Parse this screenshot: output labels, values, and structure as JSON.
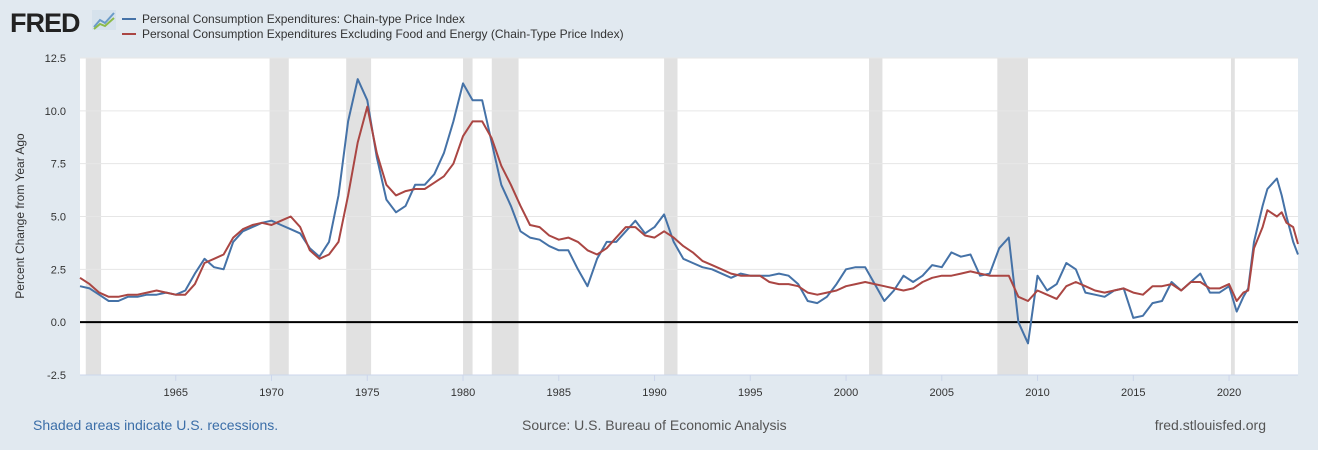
{
  "header": {
    "logo": "FRED",
    "logo_icon": "line-chart-icon"
  },
  "legend": [
    {
      "label": "Personal Consumption Expenditures: Chain-type Price Index",
      "color": "#4572a7"
    },
    {
      "label": "Personal Consumption Expenditures Excluding Food and Energy (Chain-Type Price Index)",
      "color": "#aa4643"
    }
  ],
  "footer": {
    "left": "Shaded areas indicate U.S. recessions.",
    "source": "Source: U.S. Bureau of Economic Analysis",
    "site": "fred.stlouisfed.org"
  },
  "chart_data": {
    "type": "line",
    "ylabel": "Percent Change from Year Ago",
    "xlim": [
      1960,
      2023.6
    ],
    "ylim": [
      -2.5,
      12.5
    ],
    "yticks": [
      "-2.5",
      "0.0",
      "2.5",
      "5.0",
      "7.5",
      "10.0",
      "12.5"
    ],
    "xticks": [
      "1965",
      "1970",
      "1975",
      "1980",
      "1985",
      "1990",
      "1995",
      "2000",
      "2005",
      "2010",
      "2015",
      "2020"
    ],
    "grid": true,
    "legend_placement": "top-left",
    "recessions": [
      [
        1960.3,
        1961.1
      ],
      [
        1969.9,
        1970.9
      ],
      [
        1973.9,
        1975.2
      ],
      [
        1980.0,
        1980.5
      ],
      [
        1981.5,
        1982.9
      ],
      [
        1990.5,
        1991.2
      ],
      [
        2001.2,
        2001.9
      ],
      [
        2007.9,
        2009.5
      ],
      [
        2020.1,
        2020.3
      ]
    ],
    "series": [
      {
        "name": "Personal Consumption Expenditures: Chain-type Price Index",
        "color": "#4572a7",
        "points": [
          [
            1960,
            1.7
          ],
          [
            1960.5,
            1.6
          ],
          [
            1961,
            1.3
          ],
          [
            1961.5,
            1.0
          ],
          [
            1962,
            1.0
          ],
          [
            1962.5,
            1.2
          ],
          [
            1963,
            1.2
          ],
          [
            1963.5,
            1.3
          ],
          [
            1964,
            1.3
          ],
          [
            1964.5,
            1.4
          ],
          [
            1965,
            1.3
          ],
          [
            1965.5,
            1.5
          ],
          [
            1966,
            2.3
          ],
          [
            1966.5,
            3.0
          ],
          [
            1967,
            2.6
          ],
          [
            1967.5,
            2.5
          ],
          [
            1968,
            3.8
          ],
          [
            1968.5,
            4.3
          ],
          [
            1969,
            4.5
          ],
          [
            1969.5,
            4.7
          ],
          [
            1970,
            4.8
          ],
          [
            1970.5,
            4.6
          ],
          [
            1971,
            4.4
          ],
          [
            1971.5,
            4.2
          ],
          [
            1972,
            3.5
          ],
          [
            1972.5,
            3.1
          ],
          [
            1973,
            3.8
          ],
          [
            1973.5,
            6.0
          ],
          [
            1974,
            9.5
          ],
          [
            1974.5,
            11.5
          ],
          [
            1975,
            10.5
          ],
          [
            1975.5,
            7.8
          ],
          [
            1976,
            5.8
          ],
          [
            1976.5,
            5.2
          ],
          [
            1977,
            5.5
          ],
          [
            1977.5,
            6.5
          ],
          [
            1978,
            6.5
          ],
          [
            1978.5,
            7.0
          ],
          [
            1979,
            8.0
          ],
          [
            1979.5,
            9.5
          ],
          [
            1980,
            11.3
          ],
          [
            1980.5,
            10.5
          ],
          [
            1981,
            10.5
          ],
          [
            1981.5,
            8.5
          ],
          [
            1982,
            6.5
          ],
          [
            1982.5,
            5.5
          ],
          [
            1983,
            4.3
          ],
          [
            1983.5,
            4.0
          ],
          [
            1984,
            3.9
          ],
          [
            1984.5,
            3.6
          ],
          [
            1985,
            3.4
          ],
          [
            1985.5,
            3.4
          ],
          [
            1986,
            2.5
          ],
          [
            1986.5,
            1.7
          ],
          [
            1987,
            3.0
          ],
          [
            1987.5,
            3.8
          ],
          [
            1988,
            3.8
          ],
          [
            1988.5,
            4.3
          ],
          [
            1989,
            4.8
          ],
          [
            1989.5,
            4.2
          ],
          [
            1990,
            4.5
          ],
          [
            1990.5,
            5.1
          ],
          [
            1991,
            3.8
          ],
          [
            1991.5,
            3.0
          ],
          [
            1992,
            2.8
          ],
          [
            1992.5,
            2.6
          ],
          [
            1993,
            2.5
          ],
          [
            1993.5,
            2.3
          ],
          [
            1994,
            2.1
          ],
          [
            1994.5,
            2.3
          ],
          [
            1995,
            2.2
          ],
          [
            1995.5,
            2.2
          ],
          [
            1996,
            2.2
          ],
          [
            1996.5,
            2.3
          ],
          [
            1997,
            2.2
          ],
          [
            1997.5,
            1.8
          ],
          [
            1998,
            1.0
          ],
          [
            1998.5,
            0.9
          ],
          [
            1999,
            1.2
          ],
          [
            1999.5,
            1.8
          ],
          [
            2000,
            2.5
          ],
          [
            2000.5,
            2.6
          ],
          [
            2001,
            2.6
          ],
          [
            2001.5,
            1.8
          ],
          [
            2002,
            1.0
          ],
          [
            2002.5,
            1.5
          ],
          [
            2003,
            2.2
          ],
          [
            2003.5,
            1.9
          ],
          [
            2004,
            2.2
          ],
          [
            2004.5,
            2.7
          ],
          [
            2005,
            2.6
          ],
          [
            2005.5,
            3.3
          ],
          [
            2006,
            3.1
          ],
          [
            2006.5,
            3.2
          ],
          [
            2007,
            2.2
          ],
          [
            2007.5,
            2.3
          ],
          [
            2008,
            3.5
          ],
          [
            2008.5,
            4.0
          ],
          [
            2009,
            0.0
          ],
          [
            2009.5,
            -1.0
          ],
          [
            2010,
            2.2
          ],
          [
            2010.5,
            1.5
          ],
          [
            2011,
            1.8
          ],
          [
            2011.5,
            2.8
          ],
          [
            2012,
            2.5
          ],
          [
            2012.5,
            1.4
          ],
          [
            2013,
            1.3
          ],
          [
            2013.5,
            1.2
          ],
          [
            2014,
            1.5
          ],
          [
            2014.5,
            1.6
          ],
          [
            2015,
            0.2
          ],
          [
            2015.5,
            0.3
          ],
          [
            2016,
            0.9
          ],
          [
            2016.5,
            1.0
          ],
          [
            2017,
            1.9
          ],
          [
            2017.5,
            1.5
          ],
          [
            2018,
            1.9
          ],
          [
            2018.5,
            2.3
          ],
          [
            2019,
            1.4
          ],
          [
            2019.5,
            1.4
          ],
          [
            2020,
            1.7
          ],
          [
            2020.4,
            0.5
          ],
          [
            2020.75,
            1.2
          ],
          [
            2021,
            1.6
          ],
          [
            2021.3,
            3.8
          ],
          [
            2021.75,
            5.5
          ],
          [
            2022,
            6.3
          ],
          [
            2022.5,
            6.8
          ],
          [
            2022.75,
            6.0
          ],
          [
            2023,
            5.0
          ],
          [
            2023.35,
            3.8
          ],
          [
            2023.6,
            3.2
          ]
        ]
      },
      {
        "name": "Personal Consumption Expenditures Excluding Food and Energy (Chain-Type Price Index)",
        "color": "#aa4643",
        "points": [
          [
            1960,
            2.1
          ],
          [
            1960.5,
            1.8
          ],
          [
            1961,
            1.4
          ],
          [
            1961.5,
            1.2
          ],
          [
            1962,
            1.2
          ],
          [
            1962.5,
            1.3
          ],
          [
            1963,
            1.3
          ],
          [
            1963.5,
            1.4
          ],
          [
            1964,
            1.5
          ],
          [
            1964.5,
            1.4
          ],
          [
            1965,
            1.3
          ],
          [
            1965.5,
            1.3
          ],
          [
            1966,
            1.8
          ],
          [
            1966.5,
            2.8
          ],
          [
            1967,
            3.0
          ],
          [
            1967.5,
            3.2
          ],
          [
            1968,
            4.0
          ],
          [
            1968.5,
            4.4
          ],
          [
            1969,
            4.6
          ],
          [
            1969.5,
            4.7
          ],
          [
            1970,
            4.6
          ],
          [
            1970.5,
            4.8
          ],
          [
            1971,
            5.0
          ],
          [
            1971.5,
            4.5
          ],
          [
            1972,
            3.4
          ],
          [
            1972.5,
            3.0
          ],
          [
            1973,
            3.2
          ],
          [
            1973.5,
            3.8
          ],
          [
            1974,
            6.0
          ],
          [
            1974.5,
            8.5
          ],
          [
            1975,
            10.2
          ],
          [
            1975.5,
            8.0
          ],
          [
            1976,
            6.5
          ],
          [
            1976.5,
            6.0
          ],
          [
            1977,
            6.2
          ],
          [
            1977.5,
            6.3
          ],
          [
            1978,
            6.3
          ],
          [
            1978.5,
            6.6
          ],
          [
            1979,
            6.9
          ],
          [
            1979.5,
            7.5
          ],
          [
            1980,
            8.8
          ],
          [
            1980.5,
            9.5
          ],
          [
            1981,
            9.5
          ],
          [
            1981.5,
            8.7
          ],
          [
            1982,
            7.4
          ],
          [
            1982.5,
            6.5
          ],
          [
            1983,
            5.5
          ],
          [
            1983.5,
            4.6
          ],
          [
            1984,
            4.5
          ],
          [
            1984.5,
            4.1
          ],
          [
            1985,
            3.9
          ],
          [
            1985.5,
            4.0
          ],
          [
            1986,
            3.8
          ],
          [
            1986.5,
            3.4
          ],
          [
            1987,
            3.2
          ],
          [
            1987.5,
            3.5
          ],
          [
            1988,
            4.0
          ],
          [
            1988.5,
            4.5
          ],
          [
            1989,
            4.5
          ],
          [
            1989.5,
            4.1
          ],
          [
            1990,
            4.0
          ],
          [
            1990.5,
            4.3
          ],
          [
            1991,
            4.0
          ],
          [
            1991.5,
            3.6
          ],
          [
            1992,
            3.3
          ],
          [
            1992.5,
            2.9
          ],
          [
            1993,
            2.7
          ],
          [
            1993.5,
            2.5
          ],
          [
            1994,
            2.3
          ],
          [
            1994.5,
            2.2
          ],
          [
            1995,
            2.2
          ],
          [
            1995.5,
            2.2
          ],
          [
            1996,
            1.9
          ],
          [
            1996.5,
            1.8
          ],
          [
            1997,
            1.8
          ],
          [
            1997.5,
            1.7
          ],
          [
            1998,
            1.4
          ],
          [
            1998.5,
            1.3
          ],
          [
            1999,
            1.4
          ],
          [
            1999.5,
            1.5
          ],
          [
            2000,
            1.7
          ],
          [
            2000.5,
            1.8
          ],
          [
            2001,
            1.9
          ],
          [
            2001.5,
            1.8
          ],
          [
            2002,
            1.7
          ],
          [
            2002.5,
            1.6
          ],
          [
            2003,
            1.5
          ],
          [
            2003.5,
            1.6
          ],
          [
            2004,
            1.9
          ],
          [
            2004.5,
            2.1
          ],
          [
            2005,
            2.2
          ],
          [
            2005.5,
            2.2
          ],
          [
            2006,
            2.3
          ],
          [
            2006.5,
            2.4
          ],
          [
            2007,
            2.3
          ],
          [
            2007.5,
            2.2
          ],
          [
            2008,
            2.2
          ],
          [
            2008.5,
            2.2
          ],
          [
            2009,
            1.2
          ],
          [
            2009.5,
            1.0
          ],
          [
            2010,
            1.5
          ],
          [
            2010.5,
            1.3
          ],
          [
            2011,
            1.1
          ],
          [
            2011.5,
            1.7
          ],
          [
            2012,
            1.9
          ],
          [
            2012.5,
            1.7
          ],
          [
            2013,
            1.5
          ],
          [
            2013.5,
            1.4
          ],
          [
            2014,
            1.5
          ],
          [
            2014.5,
            1.6
          ],
          [
            2015,
            1.4
          ],
          [
            2015.5,
            1.3
          ],
          [
            2016,
            1.7
          ],
          [
            2016.5,
            1.7
          ],
          [
            2017,
            1.8
          ],
          [
            2017.5,
            1.5
          ],
          [
            2018,
            1.9
          ],
          [
            2018.5,
            1.9
          ],
          [
            2019,
            1.6
          ],
          [
            2019.5,
            1.6
          ],
          [
            2020,
            1.8
          ],
          [
            2020.4,
            1.0
          ],
          [
            2020.75,
            1.4
          ],
          [
            2021,
            1.5
          ],
          [
            2021.3,
            3.5
          ],
          [
            2021.75,
            4.5
          ],
          [
            2022,
            5.3
          ],
          [
            2022.5,
            5.0
          ],
          [
            2022.75,
            5.2
          ],
          [
            2023,
            4.7
          ],
          [
            2023.35,
            4.5
          ],
          [
            2023.6,
            3.7
          ]
        ]
      }
    ]
  }
}
